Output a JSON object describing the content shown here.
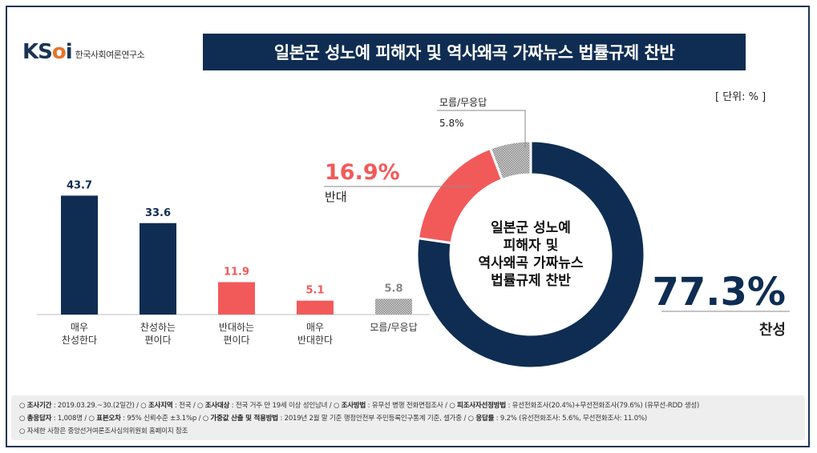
{
  "logo": {
    "mark_left": "KS",
    "mark_o": "o",
    "mark_right": "i",
    "subtitle": "한국사회여론연구소"
  },
  "title": "일본군 성노예 피해자 및 역사왜곡 가짜뉴스 법률규제 찬반",
  "unit": "[ 단위: % ]",
  "colors": {
    "navy": "#0f2d52",
    "red": "#f25a5a",
    "gray": "#b8b8b8"
  },
  "chart_data": [
    {
      "type": "bar",
      "categories": [
        "매우\n찬성한다",
        "찬성하는\n편이다",
        "반대하는\n편이다",
        "매우\n반대한다",
        "모름/무응답"
      ],
      "values": [
        43.7,
        33.6,
        11.9,
        5.1,
        5.8
      ],
      "value_labels": [
        "43.7",
        "33.6",
        "11.9",
        "5.1",
        "5.8"
      ],
      "colors": [
        "#0f2d52",
        "#0f2d52",
        "#f25a5a",
        "#f25a5a",
        "hatched-gray"
      ],
      "ylim": [
        0,
        50
      ]
    },
    {
      "type": "pie",
      "style": "donut",
      "center_text": [
        "일본군 성노예",
        "피해자 및",
        "역사왜곡 가짜뉴스",
        "법률규제 찬반"
      ],
      "slices": [
        {
          "label": "찬성",
          "value": 77.3,
          "value_label": "77.3%",
          "color": "#0f2d52"
        },
        {
          "label": "반대",
          "value": 16.9,
          "value_label": "16.9%",
          "color": "#f25a5a"
        },
        {
          "label": "모름/무응답",
          "value": 5.8,
          "value_label": "5.8%",
          "color": "hatched-gray"
        }
      ]
    }
  ],
  "footer": {
    "line1": [
      {
        "k": "조사기간",
        "v": " : 2019.03.29.~30.(2일간)"
      },
      {
        "k": "조사지역",
        "v": " : 전국"
      },
      {
        "k": "조사대상",
        "v": " : 전국 거주 만 19세 이상 성인남녀"
      },
      {
        "k": "조사방법",
        "v": " : 유무선 병행 전화면접조사"
      },
      {
        "k": "피조사자선정방법",
        "v": " : 유선전화조사(20.4%)+무선전화조사(79.6%) (유무선-RDD 생성)"
      }
    ],
    "line2": [
      {
        "k": "총응답자",
        "v": " : 1,008명"
      },
      {
        "k": "표본오차",
        "v": " : 95% 신뢰수준 ±3.1%p"
      },
      {
        "k": "가중값 산출 및 적용방법",
        "v": " : 2019년 2월 말 기준 행정안전부 주민등록인구통계 기준, 셀가중"
      },
      {
        "k": "응답률",
        "v": " : 9.2% (유선전화조사: 5.6%, 무선전화조사: 11.0%)"
      }
    ],
    "line3": "자세한 사항은 중앙선거여론조사심의위원회 홈페이지 참조"
  }
}
